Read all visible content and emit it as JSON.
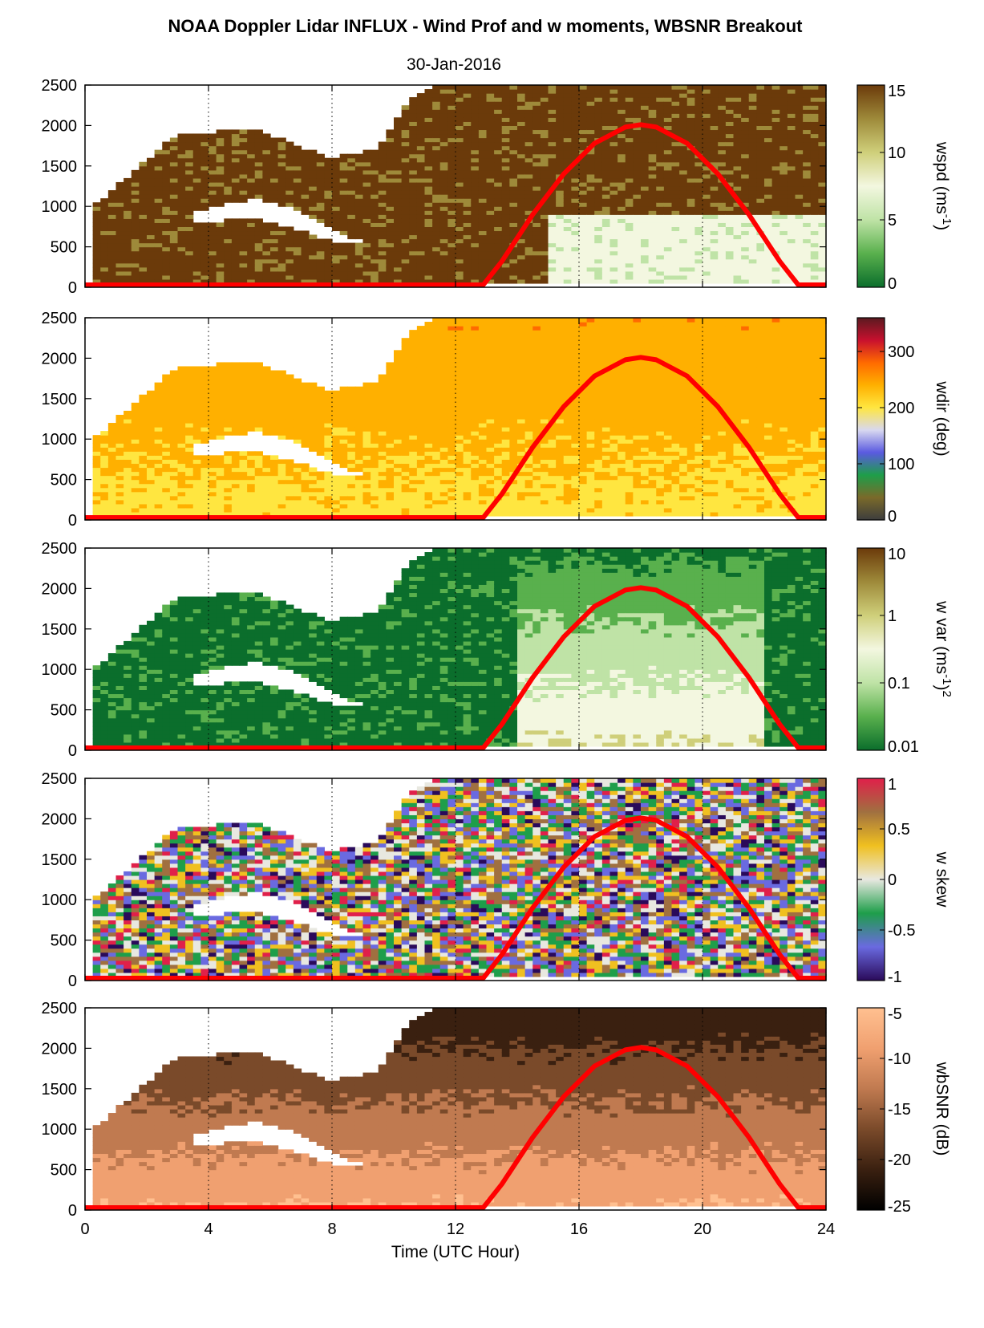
{
  "title": "NOAA Doppler Lidar INFLUX - Wind Prof and w moments, WBSNR Breakout",
  "subtitle": "30-Jan-2016",
  "chart_data": [
    {
      "type": "heatmap",
      "variable": "wspd",
      "colorbar_label": "wspd (ms",
      "colorbar_label_sup": "-1",
      "colorbar_label_end": ")",
      "colorbar_ticks": [
        "0",
        "5",
        "10",
        "15"
      ],
      "colorbar_range": [
        0,
        15
      ],
      "colorbar_stops": [
        "#0b6e2c",
        "#59b04d",
        "#bfe3a6",
        "#f3f7e0",
        "#cfcf7a",
        "#9e8a3a",
        "#6b3a0a"
      ],
      "ylim": [
        0,
        2500
      ],
      "yticks": [
        "0",
        "500",
        "1000",
        "1500",
        "2000",
        "2500"
      ],
      "xlim": [
        0,
        24
      ]
    },
    {
      "type": "heatmap",
      "variable": "wdir",
      "colorbar_label": "wdir (deg)",
      "colorbar_ticks": [
        "0",
        "100",
        "200",
        "300"
      ],
      "colorbar_range": [
        0,
        360
      ],
      "colorbar_stops": [
        "#3d3d3d",
        "#7a6a2a",
        "#1e9e4a",
        "#5a5ae0",
        "#d8d8f0",
        "#ffe640",
        "#ffb000",
        "#ff6a00",
        "#c8102e",
        "#5a1a20"
      ],
      "ylim": [
        0,
        2500
      ],
      "yticks": [
        "0",
        "500",
        "1000",
        "1500",
        "2000",
        "2500"
      ],
      "xlim": [
        0,
        24
      ]
    },
    {
      "type": "heatmap",
      "variable": "w var",
      "colorbar_label": "w var (ms",
      "colorbar_label_sup": "-1",
      "colorbar_label_mid": ")",
      "colorbar_label_sup2": "2",
      "colorbar_ticks": [
        "0.01",
        "0.1",
        "1",
        "10"
      ],
      "colorbar_range": [
        0.01,
        10
      ],
      "colorbar_scale": "log",
      "colorbar_stops": [
        "#0b6e2c",
        "#59b04d",
        "#bfe3a6",
        "#f3f7e0",
        "#cfcf7a",
        "#9e8a3a",
        "#6b3a0a"
      ],
      "ylim": [
        0,
        2500
      ],
      "yticks": [
        "0",
        "500",
        "1000",
        "1500",
        "2000",
        "2500"
      ],
      "xlim": [
        0,
        24
      ]
    },
    {
      "type": "heatmap",
      "variable": "w skew",
      "colorbar_label": "w skew",
      "colorbar_ticks": [
        "-1",
        "-0.5",
        "0",
        "0.5",
        "1"
      ],
      "colorbar_range": [
        -1,
        1
      ],
      "colorbar_stops": [
        "#2a0a5a",
        "#6a6ae0",
        "#1e9e4a",
        "#e8e8e0",
        "#f0c020",
        "#a07040",
        "#e0204a"
      ],
      "ylim": [
        0,
        2500
      ],
      "yticks": [
        "0",
        "500",
        "1000",
        "1500",
        "2000",
        "2500"
      ],
      "xlim": [
        0,
        24
      ]
    },
    {
      "type": "heatmap",
      "variable": "wbSNR",
      "colorbar_label": "wbSNR (dB)",
      "colorbar_ticks": [
        "-25",
        "-20",
        "-15",
        "-10",
        "-5"
      ],
      "colorbar_range": [
        -25,
        -5
      ],
      "colorbar_stops": [
        "#000000",
        "#3a2010",
        "#7a4a2a",
        "#c07a50",
        "#f0a070",
        "#ffc090"
      ],
      "ylim": [
        0,
        2500
      ],
      "yticks": [
        "0",
        "500",
        "1000",
        "1500",
        "2000",
        "2500"
      ],
      "xlim": [
        0,
        24
      ]
    }
  ],
  "xaxis": {
    "label": "Time (UTC Hour)",
    "ticks": [
      "0",
      "4",
      "8",
      "12",
      "16",
      "20",
      "24"
    ],
    "range": [
      0,
      24
    ],
    "gridlines": [
      4,
      8,
      12,
      16,
      20
    ]
  },
  "overlay_line": {
    "color": "#ff0000",
    "note_hidden": false,
    "x": [
      0,
      12.9,
      13.5,
      14.5,
      15.5,
      16.5,
      17.5,
      18,
      18.5,
      19.5,
      20.5,
      21.5,
      22.5,
      23.1,
      24
    ],
    "y": [
      30,
      30,
      320,
      900,
      1400,
      1780,
      1980,
      2010,
      1980,
      1780,
      1400,
      900,
      320,
      30,
      30
    ]
  }
}
